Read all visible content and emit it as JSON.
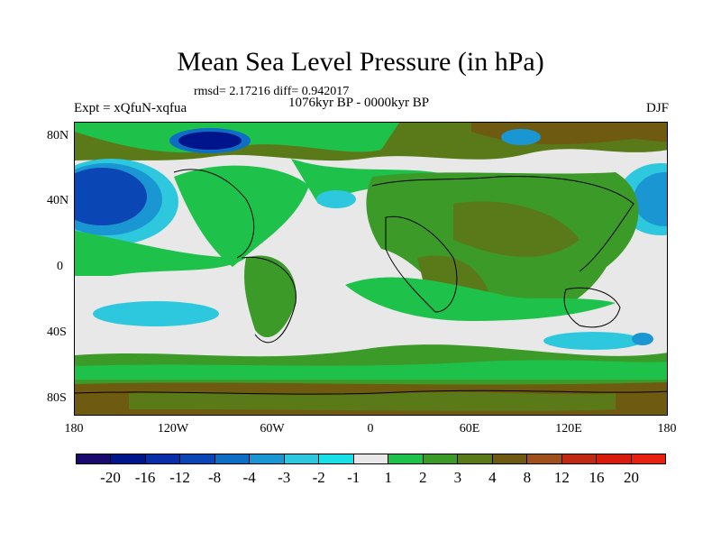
{
  "title": "Mean Sea Level Pressure (in hPa)",
  "stats": "rmsd= 2.17216 diff= 0.942017",
  "period": "1076kyr BP - 0000kyr BP",
  "experiment": "Expt = xQfuN-xqfua",
  "season": "DJF",
  "lat_labels": [
    "80N",
    "40N",
    "0",
    "40S",
    "80S"
  ],
  "lon_labels": [
    "180",
    "120W",
    "60W",
    "0",
    "60E",
    "120E",
    "180"
  ],
  "colorbar": {
    "labels": [
      "-20",
      "-16",
      "-12",
      "-8",
      "-4",
      "-3",
      "-2",
      "-1",
      "1",
      "2",
      "3",
      "4",
      "8",
      "12",
      "16",
      "20"
    ],
    "colors": [
      "#1a0a6e",
      "#00148c",
      "#0a2ea8",
      "#0a46b4",
      "#0e6ec4",
      "#1a96d2",
      "#2ec8de",
      "#18e0e6",
      "#e8e8e8",
      "#1ec24a",
      "#3c9a28",
      "#5a7a1a",
      "#6e5a10",
      "#a0501a",
      "#c02a14",
      "#d81c0c",
      "#e82010"
    ]
  },
  "colors": {
    "neutral": "#e8e8e8",
    "green": "#1ec24a",
    "darkgreen": "#3c9a28",
    "olive": "#5a7a1a",
    "brown": "#6e5a10",
    "cyan": "#2ec8de",
    "blue": "#1a96d2",
    "deepblue": "#0a46b4",
    "navy": "#00148c"
  }
}
